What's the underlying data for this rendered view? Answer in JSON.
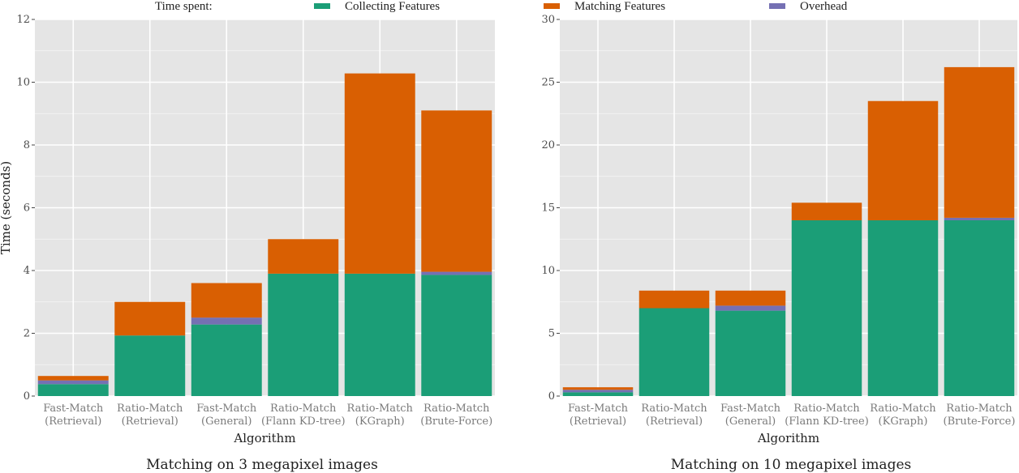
{
  "legend": {
    "title": "Time spent:",
    "items": [
      {
        "label": "Collecting Features",
        "color": "#1b9e77"
      },
      {
        "label": "Matching Features",
        "color": "#d95f02"
      },
      {
        "label": "Overhead",
        "color": "#7570b3"
      }
    ]
  },
  "colors": {
    "panel_bg": "#e5e5e5",
    "grid": "#ffffff",
    "collecting": "#1b9e77",
    "matching": "#d95f02",
    "overhead": "#7570b3"
  },
  "chart_data": [
    {
      "type": "bar",
      "stacked": true,
      "title": "Matching on 3 megapixel images",
      "xlabel": "Algorithm",
      "ylabel": "Time (seconds)",
      "ylim": [
        0,
        12
      ],
      "yticks": [
        0,
        2,
        4,
        6,
        8,
        10,
        12
      ],
      "grid": true,
      "categories": [
        [
          "Fast-Match",
          "(Retrieval)"
        ],
        [
          "Ratio-Match",
          "(Retrieval)"
        ],
        [
          "Fast-Match",
          "(General)"
        ],
        [
          "Ratio-Match",
          "(Flann KD-tree)"
        ],
        [
          "Ratio-Match",
          "(KGraph)"
        ],
        [
          "Ratio-Match",
          "(Brute-Force)"
        ]
      ],
      "series": [
        {
          "name": "Collecting Features",
          "values": [
            0.38,
            1.93,
            2.28,
            3.9,
            3.9,
            3.86
          ]
        },
        {
          "name": "Overhead",
          "values": [
            0.12,
            0.0,
            0.22,
            0.0,
            0.0,
            0.1
          ]
        },
        {
          "name": "Matching Features",
          "values": [
            0.14,
            1.07,
            1.1,
            1.1,
            6.38,
            5.14
          ]
        }
      ]
    },
    {
      "type": "bar",
      "stacked": true,
      "title": "Matching on 10 megapixel images",
      "xlabel": "Algorithm",
      "ylabel": "",
      "ylim": [
        0,
        30
      ],
      "yticks": [
        0,
        5,
        10,
        15,
        20,
        25,
        30
      ],
      "grid": true,
      "categories": [
        [
          "Fast-Match",
          "(Retrieval)"
        ],
        [
          "Ratio-Match",
          "(Retrieval)"
        ],
        [
          "Fast-Match",
          "(General)"
        ],
        [
          "Ratio-Match",
          "(Flann KD-tree)"
        ],
        [
          "Ratio-Match",
          "(KGraph)"
        ],
        [
          "Ratio-Match",
          "(Brute-Force)"
        ]
      ],
      "series": [
        {
          "name": "Collecting Features",
          "values": [
            0.3,
            7.0,
            6.8,
            14.0,
            14.0,
            14.0
          ]
        },
        {
          "name": "Overhead",
          "values": [
            0.2,
            0.0,
            0.4,
            0.0,
            0.0,
            0.2
          ]
        },
        {
          "name": "Matching Features",
          "values": [
            0.2,
            1.4,
            1.2,
            1.4,
            9.5,
            12.0
          ]
        }
      ]
    }
  ]
}
